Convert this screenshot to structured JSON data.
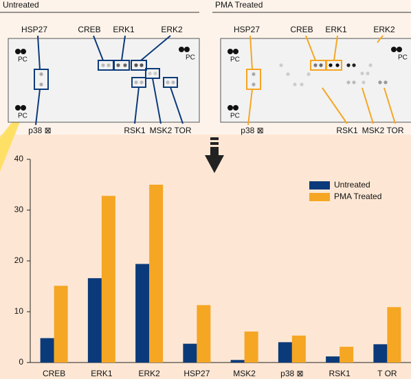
{
  "panels": [
    {
      "title": "Untreated",
      "top_labels": [
        "HSP27",
        "CREB",
        "ERK1",
        "ERK2"
      ],
      "bottom_labels": [
        "p38 ⊠",
        "RSK1",
        "MSK2",
        "TOR"
      ],
      "control_label": "PC",
      "color": "#0b3a7a"
    },
    {
      "title": "PMA Treated",
      "top_labels": [
        "HSP27",
        "CREB",
        "ERK1",
        "ERK2"
      ],
      "bottom_labels": [
        "p38 ⊠",
        "RSK1",
        "MSK2",
        "TOR"
      ],
      "control_label": "PC",
      "color": "#f5a623"
    }
  ],
  "chart_data": {
    "type": "bar",
    "categories": [
      "CREB",
      "ERK1",
      "ERK2",
      "HSP27",
      "MSK2",
      "p38 ⊠",
      "RSK1",
      "T OR"
    ],
    "series": [
      {
        "name": "Untreated",
        "color": "#0b3a7a",
        "values": [
          4.8,
          16.6,
          19.4,
          3.7,
          0.5,
          4.0,
          1.2,
          3.6
        ]
      },
      {
        "name": "PMA Treated",
        "color": "#f5a623",
        "values": [
          15.1,
          32.8,
          35.0,
          11.3,
          6.1,
          5.3,
          3.1,
          10.9
        ]
      }
    ],
    "ylim": [
      0,
      40
    ],
    "yticks": [
      0,
      10,
      20,
      30,
      40
    ],
    "legend": "upper right"
  }
}
